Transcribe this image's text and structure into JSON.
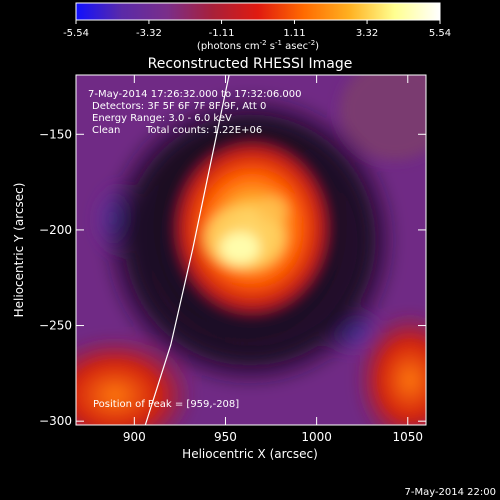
{
  "colorbar": {
    "ticks": [
      "-5.54",
      "-3.32",
      "-1.11",
      "1.11",
      "3.32",
      "5.54"
    ],
    "tick_values": [
      -5.54,
      -3.32,
      -1.11,
      1.11,
      3.32,
      5.54
    ],
    "range": [
      -5.54,
      5.54
    ],
    "units_prefix": "(photons cm",
    "units_sup1": "-2",
    "units_mid": " s",
    "units_sup2": "-1",
    "units_mid2": " asec",
    "units_sup3": "-2",
    "units_suffix": ")",
    "stops": [
      "#1010ff",
      "#5a2aa8",
      "#7a2e8a",
      "#a8203a",
      "#e01a10",
      "#ff6a00",
      "#ffb020",
      "#ffff90",
      "#ffffff"
    ]
  },
  "chart_data": {
    "type": "heatmap",
    "title": "Reconstructed RHESSI Image",
    "xlabel": "Heliocentric X (arcsec)",
    "ylabel": "Heliocentric Y (arcsec)",
    "xlim": [
      868,
      1060
    ],
    "ylim": [
      -302,
      -119
    ],
    "xticks": [
      900,
      950,
      1000,
      1050
    ],
    "yticks": [
      -150,
      -200,
      -250,
      -300
    ],
    "xtick_labels": [
      "900",
      "950",
      "1000",
      "1050"
    ],
    "ytick_labels": [
      "−150",
      "−200",
      "−250",
      "−300"
    ],
    "annotations": [
      "7-May-2014 17:26:32.000 to 17:32:06.000",
      "Detectors: 3F 5F 6F 7F 8F 9F, Att 0",
      "Energy Range: 3.0 - 6.0 keV",
      "Clean",
      "Total counts: 1.22E+06"
    ],
    "peak_label": "Position of Peak = [959,-208]",
    "peak": [
      959,
      -208
    ],
    "limb_curve": [
      [
        906,
        -302
      ],
      [
        920,
        -260
      ],
      [
        932,
        -210
      ],
      [
        943,
        -160
      ],
      [
        952,
        -119
      ]
    ]
  },
  "footer": {
    "timestamp": "7-May-2014 22:00"
  }
}
